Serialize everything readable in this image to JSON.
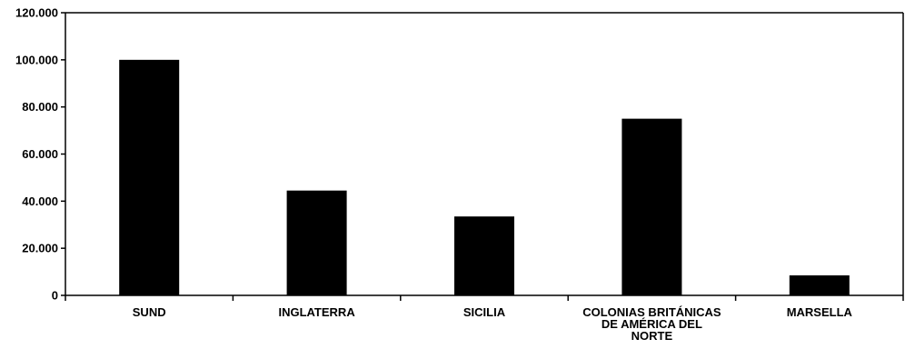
{
  "chart_data": {
    "type": "bar",
    "categories": [
      "SUND",
      "INGLATERRA",
      "SICILIA",
      "COLONIAS BRITÁNICAS DE AMÉRICA DEL NORTE",
      "MARSELLA"
    ],
    "category_label_lines": [
      [
        "SUND"
      ],
      [
        "INGLATERRA"
      ],
      [
        "SICILIA"
      ],
      [
        "COLONIAS BRITÁNICAS",
        "DE AMÉRICA DEL",
        "NORTE"
      ],
      [
        "MARSELLA"
      ]
    ],
    "values": [
      100000,
      44500,
      33500,
      75000,
      8500
    ],
    "ylim": [
      0,
      120000
    ],
    "yticks": [
      0,
      20000,
      40000,
      60000,
      80000,
      100000,
      120000
    ],
    "ytick_labels": [
      "0",
      "20.000",
      "40.000",
      "60.000",
      "80.000",
      "100.000",
      "120.000"
    ],
    "title": "",
    "xlabel": "",
    "ylabel": "",
    "grid": false,
    "bar_color": "#000000"
  }
}
